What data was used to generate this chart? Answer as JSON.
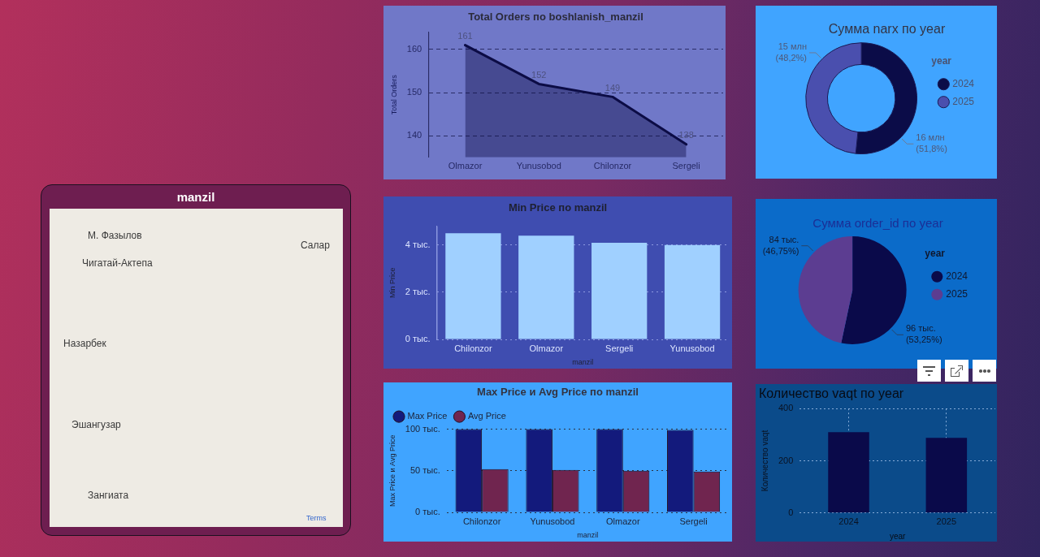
{
  "chart_data": [
    {
      "type": "area",
      "title": "Total Orders по boshlanish_manzil",
      "ylabel": "Total Orders",
      "categories": [
        "Olmazor",
        "Yunusobod",
        "Chilonzor",
        "Sergeli"
      ],
      "values": [
        161,
        152,
        149,
        138
      ],
      "color": "#0c0c45",
      "ylim": [
        135,
        164
      ],
      "yticks": [
        140,
        150,
        160
      ],
      "grid": "y",
      "data_labels": true,
      "marker": "none"
    },
    {
      "type": "donut",
      "title": "Сумма narx по year",
      "categories": [
        "2024",
        "2025"
      ],
      "values": [
        16,
        15
      ],
      "value_labels": [
        "16 млн (51,8%)",
        "15 млн (48,2%)"
      ],
      "colors": [
        "#0b0c48",
        "#4a4fae"
      ],
      "legend": "right",
      "legend_title": "year"
    },
    {
      "type": "other",
      "title": "manzil",
      "annotations": [
        "М. Фазылов",
        "Салар",
        "Чигатай-Актепа",
        "Назарбек",
        "Эшангузар",
        "Зангиата",
        "Terms"
      ]
    },
    {
      "type": "bar",
      "title": "Min Price по manzil",
      "xlabel": "manzil",
      "ylabel": "Min Price",
      "categories": [
        "Chilonzor",
        "Olmazor",
        "Sergeli",
        "Yunusobod"
      ],
      "values": [
        4.5,
        4.4,
        4.1,
        4.0
      ],
      "color": "#a0d0ff",
      "ylim": [
        0,
        4.8
      ],
      "yticks": [
        {
          "value": 0,
          "label": "0 тыс."
        },
        {
          "value": 2,
          "label": "2 тыс."
        },
        {
          "value": 4,
          "label": "4 тыс."
        }
      ],
      "grid": "y"
    },
    {
      "type": "pie",
      "title": "Сумма order_id по year",
      "categories": [
        "2024",
        "2025"
      ],
      "values": [
        96,
        84
      ],
      "value_labels": [
        "96 тыс. (53,25%)",
        "84 тыс. (46,75%)"
      ],
      "colors": [
        "#0a0a4a",
        "#5c3d91"
      ],
      "legend": "right",
      "legend_title": "year"
    },
    {
      "type": "bar",
      "title": "Max Price и Avg Price по manzil",
      "xlabel": "manzil",
      "ylabel": "Max Price и Avg Price",
      "categories": [
        "Chilonzor",
        "Yunusobod",
        "Olmazor",
        "Sergeli"
      ],
      "series": [
        {
          "name": "Max Price",
          "color": "#131a7c",
          "values": [
            100,
            100,
            100,
            99
          ]
        },
        {
          "name": "Avg Price",
          "color": "#70254f",
          "values": [
            52,
            51,
            50,
            49
          ]
        }
      ],
      "ylim": [
        0,
        100
      ],
      "yticks": [
        {
          "value": 0,
          "label": "0 тыс."
        },
        {
          "value": 50,
          "label": "50 тыс."
        },
        {
          "value": 100,
          "label": "100 тыс."
        }
      ],
      "grid": "y",
      "legend": "top left"
    },
    {
      "type": "bar",
      "title": "Количество vaqt по year",
      "xlabel": "year",
      "ylabel": "Количество vaqt",
      "categories": [
        "2024",
        "2025"
      ],
      "values": [
        310,
        288
      ],
      "color": "#0a0a4a",
      "ylim": [
        0,
        400
      ],
      "yticks": [
        0,
        200,
        400
      ],
      "grid": true
    }
  ]
}
